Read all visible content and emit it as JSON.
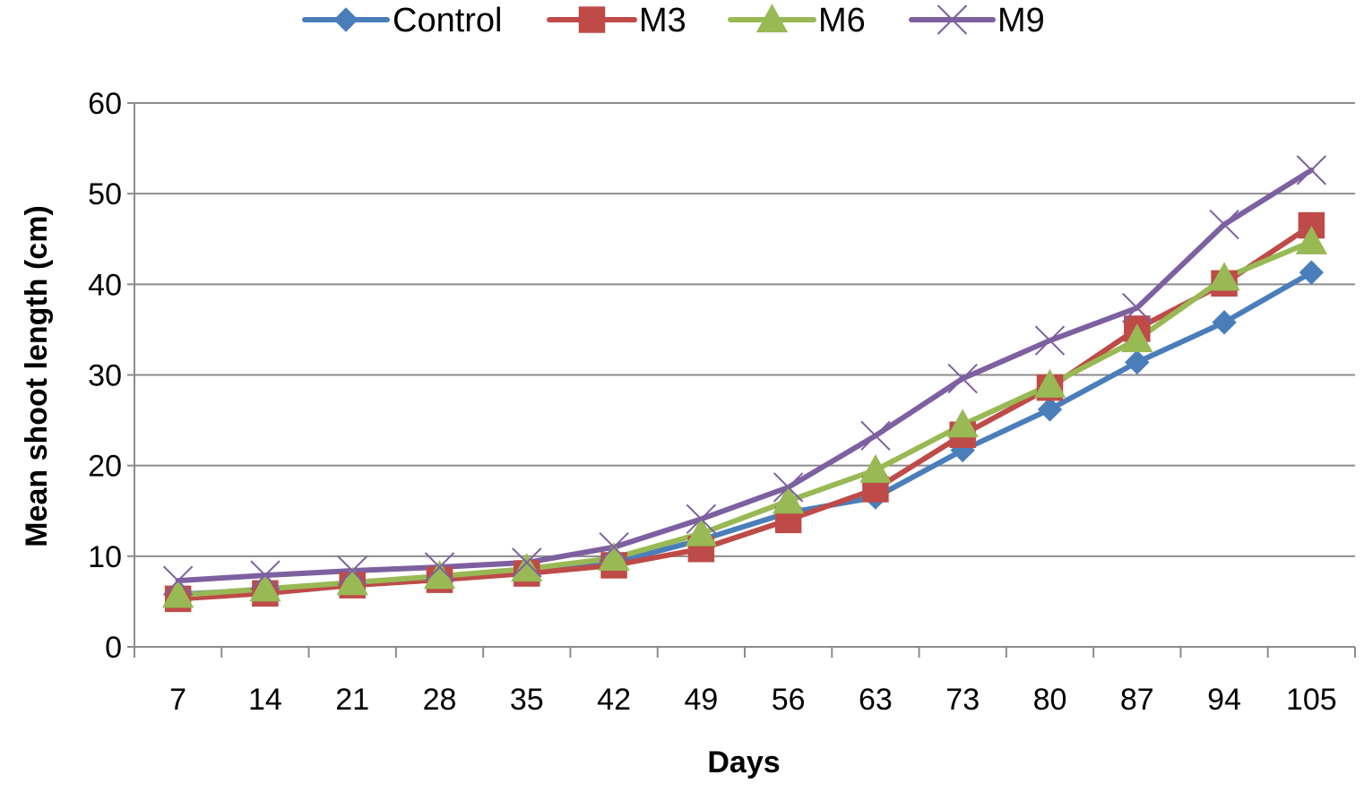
{
  "chart_data": {
    "type": "line",
    "title": "",
    "xlabel": "Days",
    "ylabel": "Mean shoot length (cm)",
    "categories": [
      "7",
      "14",
      "21",
      "28",
      "35",
      "42",
      "49",
      "56",
      "63",
      "73",
      "80",
      "87",
      "94",
      "105"
    ],
    "ylim": [
      0,
      60
    ],
    "yticks": [
      0,
      10,
      20,
      30,
      40,
      50,
      60
    ],
    "grid": true,
    "legend_position": "top",
    "series": [
      {
        "name": "Control",
        "color": "#4A7EBB",
        "marker": "diamond",
        "values": [
          5.8,
          6.3,
          7.0,
          7.5,
          8.3,
          9.3,
          11.8,
          14.8,
          16.5,
          21.7,
          26.2,
          31.4,
          35.8,
          41.3
        ]
      },
      {
        "name": "M3",
        "color": "#BE4B48",
        "marker": "square",
        "values": [
          5.3,
          5.9,
          6.8,
          7.4,
          8.1,
          9.0,
          10.8,
          14.0,
          17.4,
          23.4,
          28.6,
          35.1,
          40.1,
          46.5
        ]
      },
      {
        "name": "M6",
        "color": "#98B954",
        "marker": "triangle",
        "values": [
          5.7,
          6.4,
          7.1,
          7.8,
          8.6,
          9.8,
          12.5,
          16.1,
          19.5,
          24.5,
          28.9,
          33.9,
          40.7,
          44.7
        ]
      },
      {
        "name": "M9",
        "color": "#7D60A0",
        "marker": "x",
        "values": [
          7.3,
          7.9,
          8.4,
          8.8,
          9.3,
          11.0,
          14.1,
          17.6,
          23.3,
          29.6,
          33.8,
          37.4,
          46.6,
          52.6
        ]
      }
    ]
  }
}
